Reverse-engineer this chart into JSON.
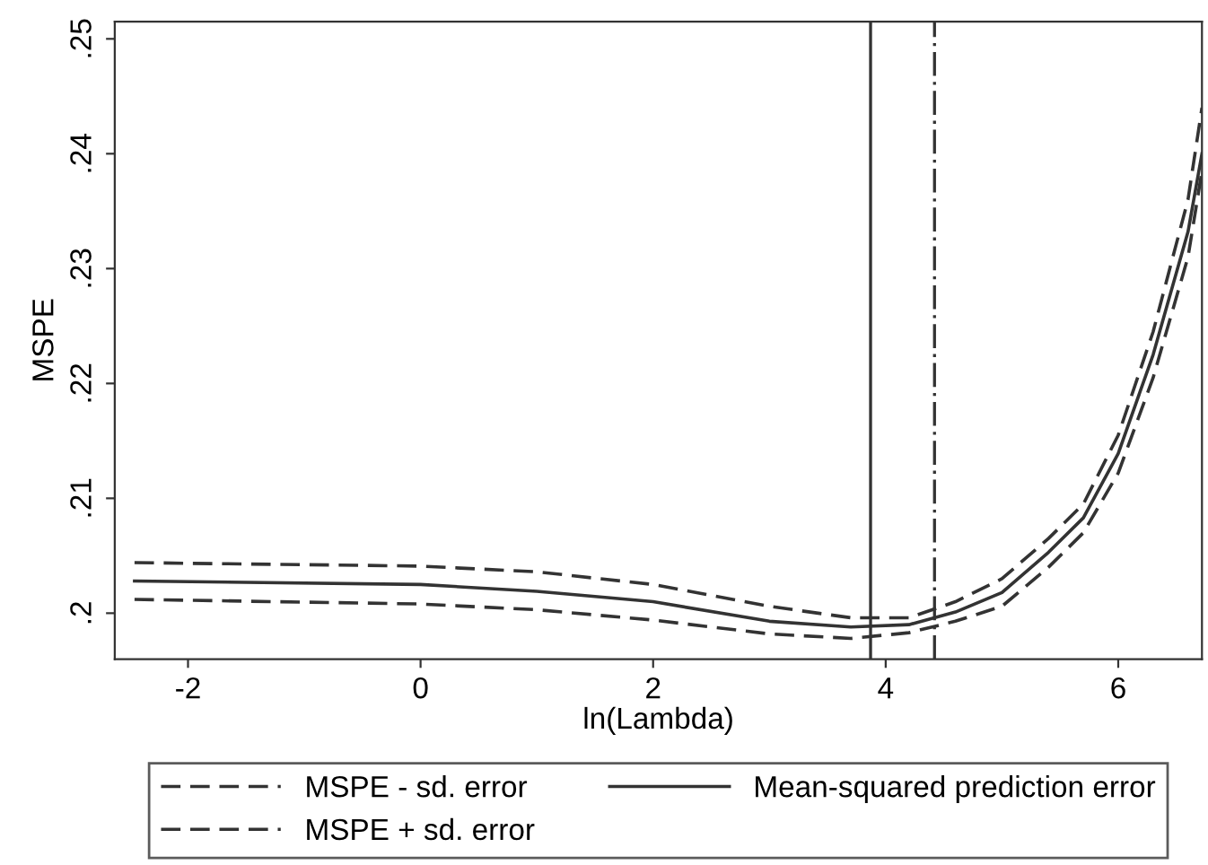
{
  "chart_data": {
    "type": "line",
    "xlabel": "ln(Lambda)",
    "ylabel": "MSPE",
    "xlim": [
      -2.63,
      6.72
    ],
    "ylim": [
      0.196,
      0.2515
    ],
    "xticks": [
      -2,
      0,
      2,
      4,
      6
    ],
    "yticks": [
      {
        "value": 0.2,
        "label": ".2"
      },
      {
        "value": 0.21,
        "label": ".21"
      },
      {
        "value": 0.22,
        "label": ".22"
      },
      {
        "value": 0.23,
        "label": ".23"
      },
      {
        "value": 0.24,
        "label": ".24"
      },
      {
        "value": 0.25,
        "label": ".25"
      }
    ],
    "x": [
      -2.46,
      0,
      1,
      2,
      3,
      3.7,
      4.2,
      4.6,
      5.0,
      5.4,
      5.7,
      6.0,
      6.3,
      6.6,
      6.72
    ],
    "series": [
      {
        "name": "MSPE - sd. error",
        "color": "#333333",
        "line_style": "dashed",
        "values": [
          0.2012,
          0.2008,
          0.2003,
          0.1994,
          0.1982,
          0.1978,
          0.1983,
          0.1993,
          0.2006,
          0.204,
          0.207,
          0.2122,
          0.2205,
          0.231,
          0.2385
        ]
      },
      {
        "name": "MSPE + sd. error",
        "color": "#333333",
        "line_style": "dashed",
        "values": [
          0.2044,
          0.2041,
          0.2036,
          0.2025,
          0.2006,
          0.1996,
          0.1996,
          0.201,
          0.203,
          0.2065,
          0.2095,
          0.2155,
          0.2245,
          0.236,
          0.244
        ]
      },
      {
        "name": "Mean-squared prediction error",
        "color": "#333333",
        "line_style": "solid",
        "values": [
          0.2028,
          0.2025,
          0.2019,
          0.201,
          0.1993,
          0.1988,
          0.199,
          0.2001,
          0.2018,
          0.2053,
          0.2083,
          0.2139,
          0.2225,
          0.2332,
          0.24
        ]
      }
    ],
    "ref_lines": [
      {
        "axis": "x",
        "value": 3.87,
        "color": "#333333",
        "line_style": "solid"
      },
      {
        "axis": "x",
        "value": 4.42,
        "color": "#333333",
        "line_style": "dashdot"
      }
    ],
    "legend": "bottom",
    "grid": false,
    "marker": "none"
  }
}
